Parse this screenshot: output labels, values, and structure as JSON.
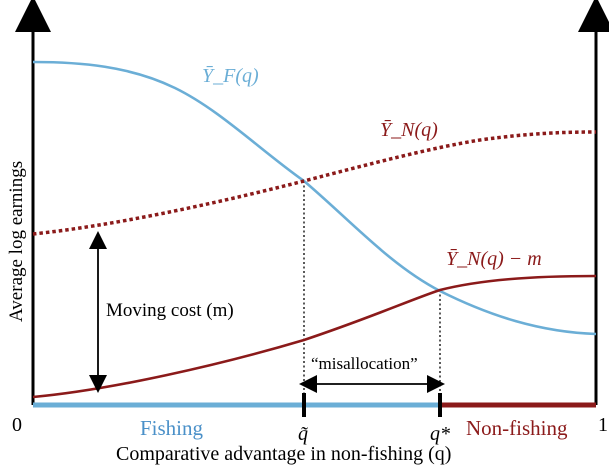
{
  "colors": {
    "blue": "#6baed6",
    "red": "#8b1a1a",
    "black": "#000000",
    "fishing_text": "#4a90c8"
  },
  "axes": {
    "ylabel": "Average log earnings",
    "xlabel": "Comparative advantage in non-fishing (q)",
    "origin_label": "0",
    "end_label": "1"
  },
  "curves": {
    "YF": {
      "label": "Ȳ_F(q)"
    },
    "YN": {
      "label": "Ȳ_N(q)"
    },
    "YNm": {
      "label": "Ȳ_N(q) − m"
    }
  },
  "annotations": {
    "moving_cost": "Moving cost (m)",
    "misallocation": "“misallocation”",
    "q_tilde": "q̃",
    "q_star": "q*"
  },
  "regions": {
    "fishing": "Fishing",
    "non_fishing": "Non-fishing"
  }
}
